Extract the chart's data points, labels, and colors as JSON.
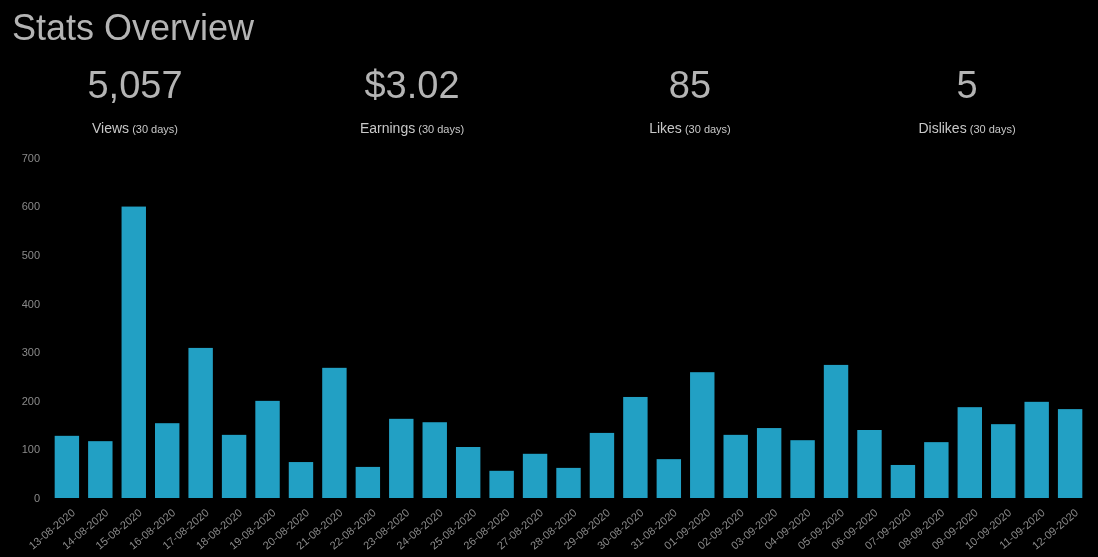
{
  "chart_data": [
    {
      "type": "other",
      "title": "Stats Overview",
      "annotations": [
        "5,057",
        "Views",
        "(30 days)",
        "$3.02",
        "Earnings",
        "(30 days)",
        "85",
        "Likes",
        "(30 days)",
        "5",
        "Dislikes",
        "(30 days)"
      ]
    },
    {
      "type": "bar",
      "color": "#22a0c4",
      "categories": [
        "13-08-2020",
        "14-08-2020",
        "15-08-2020",
        "16-08-2020",
        "17-08-2020",
        "18-08-2020",
        "19-08-2020",
        "20-08-2020",
        "21-08-2020",
        "22-08-2020",
        "23-08-2020",
        "24-08-2020",
        "25-08-2020",
        "26-08-2020",
        "27-08-2020",
        "28-08-2020",
        "29-08-2020",
        "30-08-2020",
        "31-08-2020",
        "01-09-2020",
        "02-09-2020",
        "03-09-2020",
        "04-09-2020",
        "05-09-2020",
        "06-09-2020",
        "07-09-2020",
        "08-09-2020",
        "09-09-2020",
        "10-09-2020",
        "11-09-2020",
        "12-09-2020"
      ],
      "values": [
        128,
        117,
        600,
        154,
        309,
        130,
        200,
        74,
        268,
        64,
        163,
        156,
        105,
        56,
        91,
        62,
        134,
        208,
        80,
        259,
        130,
        144,
        119,
        274,
        140,
        68,
        115,
        187,
        152,
        198,
        183
      ],
      "ylim": [
        0,
        700
      ],
      "yticks": [
        0,
        100,
        200,
        300,
        400,
        500,
        600,
        700
      ],
      "grid": false
    }
  ]
}
